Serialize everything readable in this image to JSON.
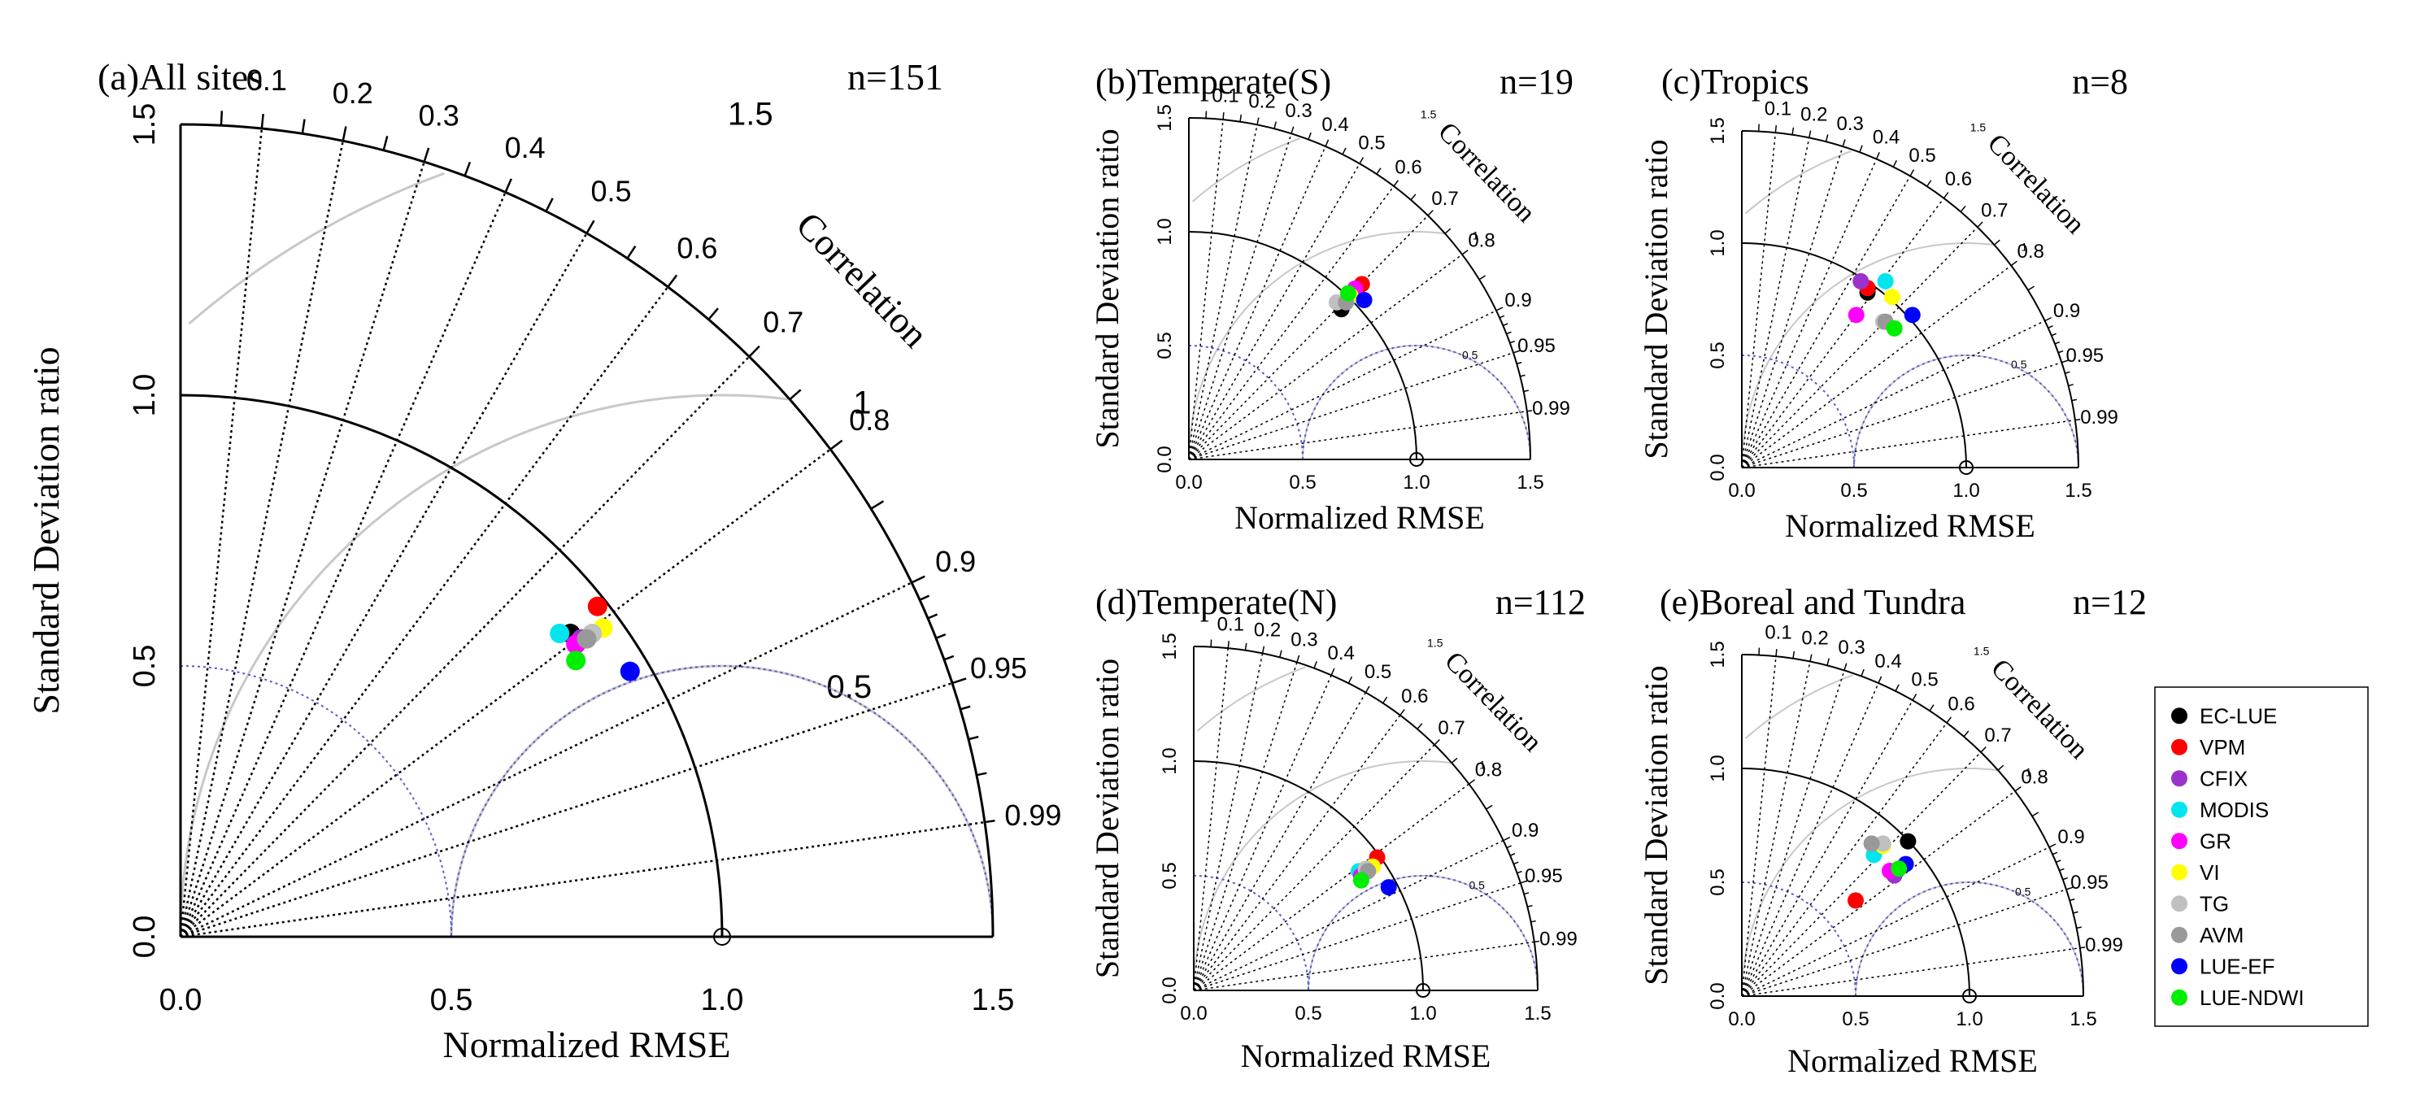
{
  "figure": {
    "legend": {
      "entries": [
        {
          "name": "EC-LUE",
          "color": "#000000"
        },
        {
          "name": "VPM",
          "color": "#ff0000"
        },
        {
          "name": "CFIX",
          "color": "#9933cc"
        },
        {
          "name": "MODIS",
          "color": "#00e5ee"
        },
        {
          "name": "GR",
          "color": "#ff00ff"
        },
        {
          "name": "VI",
          "color": "#ffff00"
        },
        {
          "name": "TG",
          "color": "#c0c0c0"
        },
        {
          "name": "AVM",
          "color": "#999999"
        },
        {
          "name": "LUE-EF",
          "color": "#0000ff"
        },
        {
          "name": "LUE-NDWI",
          "color": "#00ee00"
        }
      ]
    }
  },
  "chart_data": [
    {
      "type": "scatter",
      "subtype": "taylor-diagram",
      "title": "(a)All sites",
      "n_label": "n=151",
      "xlabel": "Normalized RMSE",
      "ylabel": "Standard Deviation ratio",
      "arc_label": "Correlation",
      "xlim": [
        0,
        1.5
      ],
      "ylim": [
        0,
        1.5
      ],
      "x_ticks": [
        "0.0",
        "0.5",
        "1.0",
        "1.5"
      ],
      "y_ticks": [
        "0.0",
        "0.5",
        "1.0",
        "1.5"
      ],
      "correlation_ticks": [
        "0.1",
        "0.2",
        "0.3",
        "0.4",
        "0.5",
        "0.6",
        "0.7",
        "0.8",
        "0.9",
        "0.95",
        "0.99"
      ],
      "rmse_contours": [
        "0.5",
        "1",
        "1.5"
      ],
      "points": [
        {
          "name": "EC-LUE",
          "x": 0.72,
          "y": 0.56
        },
        {
          "name": "VPM",
          "x": 0.77,
          "y": 0.61
        },
        {
          "name": "CFIX",
          "x": 0.74,
          "y": 0.55
        },
        {
          "name": "MODIS",
          "x": 0.7,
          "y": 0.56
        },
        {
          "name": "GR",
          "x": 0.73,
          "y": 0.54
        },
        {
          "name": "VI",
          "x": 0.78,
          "y": 0.57
        },
        {
          "name": "TG",
          "x": 0.76,
          "y": 0.56
        },
        {
          "name": "AVM",
          "x": 0.75,
          "y": 0.55
        },
        {
          "name": "LUE-EF",
          "x": 0.83,
          "y": 0.49
        },
        {
          "name": "LUE-NDWI",
          "x": 0.73,
          "y": 0.51
        }
      ]
    },
    {
      "type": "scatter",
      "subtype": "taylor-diagram",
      "title": "(b)Temperate(S)",
      "n_label": "n=19",
      "xlabel": "Normalized RMSE",
      "ylabel": "Standard Deviation ratio",
      "arc_label": "Correlation",
      "xlim": [
        0,
        1.5
      ],
      "ylim": [
        0,
        1.5
      ],
      "x_ticks": [
        "0.0",
        "0.5",
        "1.0",
        "1.5"
      ],
      "y_ticks": [
        "0.0",
        "0.5",
        "1.0",
        "1.5"
      ],
      "correlation_ticks": [
        "0.1",
        "0.2",
        "0.3",
        "0.4",
        "0.5",
        "0.6",
        "0.7",
        "0.8",
        "0.9",
        "0.95",
        "0.99"
      ],
      "rmse_contours": [
        "0.5",
        "1",
        "1.5"
      ],
      "points": [
        {
          "name": "EC-LUE",
          "x": 0.67,
          "y": 0.66
        },
        {
          "name": "VPM",
          "x": 0.76,
          "y": 0.77
        },
        {
          "name": "CFIX",
          "x": 0.72,
          "y": 0.73
        },
        {
          "name": "MODIS",
          "x": 0.72,
          "y": 0.72
        },
        {
          "name": "GR",
          "x": 0.73,
          "y": 0.75
        },
        {
          "name": "VI",
          "x": 0.71,
          "y": 0.72
        },
        {
          "name": "TG",
          "x": 0.65,
          "y": 0.69
        },
        {
          "name": "AVM",
          "x": 0.69,
          "y": 0.69
        },
        {
          "name": "LUE-EF",
          "x": 0.77,
          "y": 0.7
        },
        {
          "name": "LUE-NDWI",
          "x": 0.7,
          "y": 0.73
        }
      ]
    },
    {
      "type": "scatter",
      "subtype": "taylor-diagram",
      "title": "(c)Tropics",
      "n_label": "n=8",
      "xlabel": "Normalized RMSE",
      "ylabel": "Standard Deviation ratio",
      "arc_label": "Correlation",
      "xlim": [
        0,
        1.5
      ],
      "ylim": [
        0,
        1.5
      ],
      "x_ticks": [
        "0.0",
        "0.5",
        "1.0",
        "1.5"
      ],
      "y_ticks": [
        "0.0",
        "0.5",
        "1.0",
        "1.5"
      ],
      "correlation_ticks": [
        "0.1",
        "0.2",
        "0.3",
        "0.4",
        "0.5",
        "0.6",
        "0.7",
        "0.8",
        "0.9",
        "0.95",
        "0.99"
      ],
      "rmse_contours": [
        "0.5",
        "1",
        "1.5"
      ],
      "points": [
        {
          "name": "EC-LUE",
          "x": 0.56,
          "y": 0.78
        },
        {
          "name": "VPM",
          "x": 0.56,
          "y": 0.8
        },
        {
          "name": "CFIX",
          "x": 0.53,
          "y": 0.83
        },
        {
          "name": "MODIS",
          "x": 0.64,
          "y": 0.83
        },
        {
          "name": "GR",
          "x": 0.51,
          "y": 0.68
        },
        {
          "name": "VI",
          "x": 0.67,
          "y": 0.76
        },
        {
          "name": "TG",
          "x": 0.63,
          "y": 0.65
        },
        {
          "name": "AVM",
          "x": 0.64,
          "y": 0.65
        },
        {
          "name": "LUE-EF",
          "x": 0.76,
          "y": 0.68
        },
        {
          "name": "LUE-NDWI",
          "x": 0.68,
          "y": 0.62
        }
      ]
    },
    {
      "type": "scatter",
      "subtype": "taylor-diagram",
      "title": "(d)Temperate(N)",
      "n_label": "n=112",
      "xlabel": "Normalized RMSE",
      "ylabel": "Standard Deviation ratio",
      "arc_label": "Correlation",
      "xlim": [
        0,
        1.5
      ],
      "ylim": [
        0,
        1.5
      ],
      "x_ticks": [
        "0.0",
        "0.5",
        "1.0",
        "1.5"
      ],
      "y_ticks": [
        "0.0",
        "0.5",
        "1.0",
        "1.5"
      ],
      "correlation_ticks": [
        "0.1",
        "0.2",
        "0.3",
        "0.4",
        "0.5",
        "0.6",
        "0.7",
        "0.8",
        "0.9",
        "0.95",
        "0.99"
      ],
      "rmse_contours": [
        "0.5",
        "1",
        "1.5"
      ],
      "points": [
        {
          "name": "EC-LUE",
          "x": 0.73,
          "y": 0.52
        },
        {
          "name": "VPM",
          "x": 0.8,
          "y": 0.58
        },
        {
          "name": "CFIX",
          "x": 0.75,
          "y": 0.52
        },
        {
          "name": "MODIS",
          "x": 0.72,
          "y": 0.52
        },
        {
          "name": "GR",
          "x": 0.73,
          "y": 0.5
        },
        {
          "name": "VI",
          "x": 0.78,
          "y": 0.54
        },
        {
          "name": "TG",
          "x": 0.75,
          "y": 0.53
        },
        {
          "name": "AVM",
          "x": 0.76,
          "y": 0.52
        },
        {
          "name": "LUE-EF",
          "x": 0.85,
          "y": 0.45
        },
        {
          "name": "LUE-NDWI",
          "x": 0.73,
          "y": 0.48
        }
      ]
    },
    {
      "type": "scatter",
      "subtype": "taylor-diagram",
      "title": "(e)Boreal and Tundra",
      "n_label": "n=12",
      "xlabel": "Normalized RMSE",
      "ylabel": "Standard Deviation ratio",
      "arc_label": "Correlation",
      "xlim": [
        0,
        1.5
      ],
      "ylim": [
        0,
        1.5
      ],
      "x_ticks": [
        "0.0",
        "0.5",
        "1.0",
        "1.5"
      ],
      "y_ticks": [
        "0.0",
        "0.5",
        "1.0",
        "1.5"
      ],
      "correlation_ticks": [
        "0.1",
        "0.2",
        "0.3",
        "0.4",
        "0.5",
        "0.6",
        "0.7",
        "0.8",
        "0.9",
        "0.95",
        "0.99"
      ],
      "rmse_contours": [
        "0.5",
        "1",
        "1.5"
      ],
      "points": [
        {
          "name": "EC-LUE",
          "x": 0.73,
          "y": 0.68
        },
        {
          "name": "VPM",
          "x": 0.5,
          "y": 0.42
        },
        {
          "name": "CFIX",
          "x": 0.67,
          "y": 0.53
        },
        {
          "name": "MODIS",
          "x": 0.58,
          "y": 0.62
        },
        {
          "name": "GR",
          "x": 0.65,
          "y": 0.55
        },
        {
          "name": "VI",
          "x": 0.62,
          "y": 0.66
        },
        {
          "name": "TG",
          "x": 0.62,
          "y": 0.67
        },
        {
          "name": "AVM",
          "x": 0.57,
          "y": 0.67
        },
        {
          "name": "LUE-EF",
          "x": 0.72,
          "y": 0.58
        },
        {
          "name": "LUE-NDWI",
          "x": 0.69,
          "y": 0.56
        }
      ]
    }
  ]
}
